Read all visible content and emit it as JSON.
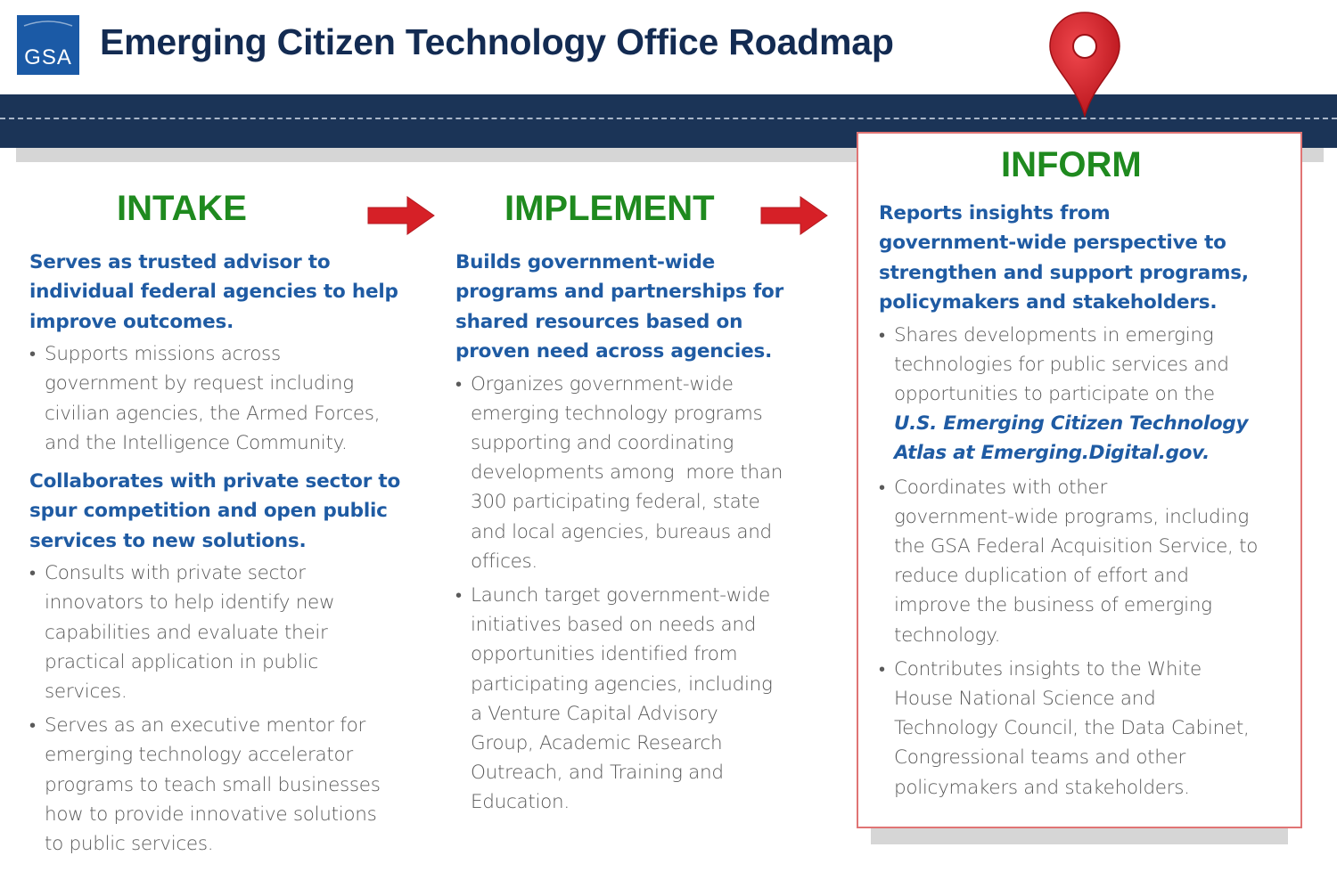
{
  "header": {
    "logo_text": "GSA",
    "title": "Emerging Citizen Technology Office Roadmap"
  },
  "colors": {
    "navy": "#1b3457",
    "title_navy": "#132b52",
    "heading_green": "#1f8a1f",
    "lead_blue": "#1f5ba3",
    "body_gray": "#5a5a5a",
    "arrow_red": "#d62027",
    "pin_red": "#d62027"
  },
  "icons": {
    "pin": "map-pin-icon",
    "arrow": "right-arrow-icon"
  },
  "columns": [
    {
      "heading": "INTAKE",
      "sections": [
        {
          "lead": [
            "Serves as trusted advisor to",
            "individual federal agencies to help",
            "improve outcomes."
          ],
          "bullets": [
            [
              "Supports missions across",
              "government by request including",
              "civilian agencies, the Armed Forces,",
              "and the Intelligence Community."
            ]
          ]
        },
        {
          "lead": [
            "Collaborates with private sector to",
            "spur competition and open public",
            "services to new solutions."
          ],
          "bullets": [
            [
              "Consults with private sector",
              "innovators to help identify new",
              "capabilities and evaluate their",
              "practical application in public",
              "services."
            ],
            [
              "Serves as an executive mentor for",
              "emerging technology accelerator",
              "programs to teach small businesses",
              "how to provide innovative solutions",
              "to public services."
            ]
          ]
        }
      ]
    },
    {
      "heading": "IMPLEMENT",
      "sections": [
        {
          "lead": [
            "Builds government-wide",
            "programs and partnerships for",
            "shared resources based on",
            "proven need across agencies."
          ],
          "bullets": [
            [
              "Organizes government-wide",
              "emerging technology programs",
              "supporting and coordinating",
              "developments among  more than",
              "300 participating federal, state",
              "and local agencies, bureaus and",
              "offices."
            ],
            [
              "Launch target government-wide",
              "initiatives based on needs and",
              "opportunities identified from",
              "participating agencies, including",
              "a Venture Capital Advisory",
              "Group, Academic Research",
              "Outreach, and Training and",
              "Education."
            ]
          ]
        }
      ]
    },
    {
      "heading": "INFORM",
      "sections": [
        {
          "lead": [
            "Reports insights from",
            "government-wide perspective to",
            "strengthen and support programs,",
            "policymakers and stakeholders."
          ],
          "bullets": [
            [
              "Shares developments in emerging",
              "technologies for public services and",
              "opportunities to participate on the"
            ],
            [
              "Coordinates with other",
              "government-wide programs, including",
              "the GSA Federal Acquisition Service, to",
              "reduce duplication of effort and",
              "improve the business of emerging",
              "technology."
            ],
            [
              "Contributes insights to the White",
              "House National Science and",
              "Technology Council, the Data Cabinet,",
              "Congressional teams and other",
              "policymakers and stakeholders."
            ]
          ],
          "link_lines": [
            "U.S. Emerging Citizen Technology",
            "Atlas at Emerging.Digital.gov."
          ]
        }
      ]
    }
  ]
}
